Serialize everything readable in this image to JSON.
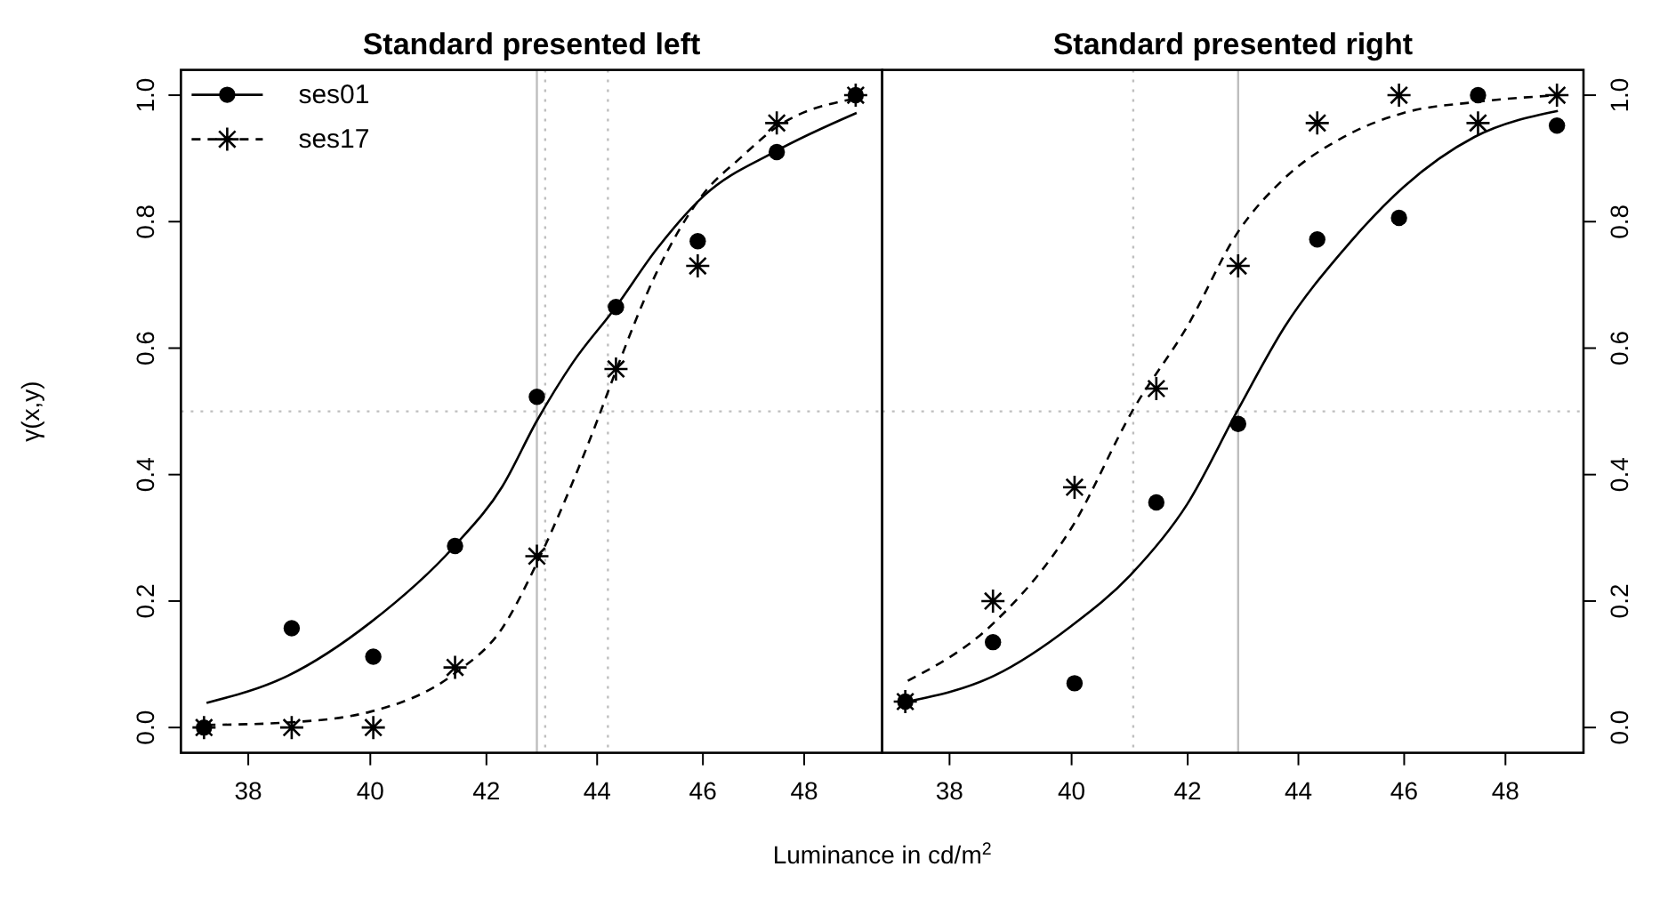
{
  "chart_data": [
    {
      "type": "scatter",
      "title": "Standard presented left",
      "xlabel": "Luminance in cd/m$^{2}$",
      "ylabel": "γ(x,y)",
      "log": "x",
      "xlim": [
        36.94,
        49.6
      ],
      "xticks": [
        38,
        40,
        42,
        44,
        46,
        48
      ],
      "ylim": [
        -0.04,
        1.04
      ],
      "yticks": [
        {
          "value": 0,
          "label": "0.0"
        },
        0.2,
        0.4,
        0.6,
        0.8,
        {
          "value": 1,
          "label": "1.0"
        }
      ],
      "legend": "top left",
      "series": [
        {
          "marker": "circle",
          "color": "#000000",
          "x": [
            37.3,
            38.7,
            40.05,
            41.45,
            42.9,
            44.35,
            45.9,
            47.45,
            49.05
          ],
          "values": [
            0,
            0.157,
            0.112,
            0.287,
            0.523,
            0.665,
            0.769,
            0.91,
            1.0
          ]
        },
        {
          "marker": "cross",
          "color": "#000000",
          "x": [
            37.3,
            38.7,
            40.05,
            41.45,
            42.9,
            44.35,
            45.9,
            47.45,
            49.05
          ],
          "values": [
            0,
            0,
            0,
            0.095,
            0.271,
            0.567,
            0.73,
            0.956,
            1.0
          ]
        },
        {
          "name": "ses01",
          "type": "line",
          "line_style": "solid",
          "color": "#000000",
          "x": [
            37.34,
            38.64,
            40.0,
            41.45,
            42.28,
            42.9,
            43.56,
            44.33,
            45.11,
            46.02,
            47.42,
            49.07
          ],
          "values": [
            0.039,
            0.082,
            0.166,
            0.288,
            0.381,
            0.485,
            0.578,
            0.663,
            0.756,
            0.841,
            0.911,
            0.972
          ]
        },
        {
          "name": "ses17",
          "type": "line",
          "line_style": "dashed",
          "color": "#000000",
          "x": [
            37.34,
            38.64,
            40.0,
            41.45,
            42.28,
            42.9,
            43.56,
            44.0,
            44.33,
            45.11,
            46.02,
            46.72,
            47.42,
            49.07
          ],
          "values": [
            0.004,
            0.008,
            0.025,
            0.086,
            0.157,
            0.26,
            0.39,
            0.485,
            0.56,
            0.719,
            0.845,
            0.9,
            0.948,
            0.995
          ]
        }
      ],
      "ref_lines": [
        {
          "axis": "x",
          "value": 42.9,
          "color": "#bebebe",
          "line_style": "solid"
        },
        {
          "axis": "x",
          "value": 43.05,
          "color": "#bebebe",
          "line_style": "dotted"
        },
        {
          "axis": "x",
          "value": 44.2,
          "color": "#bebebe",
          "line_style": "dotted"
        },
        {
          "axis": "y",
          "value": 0.5,
          "color": "#bebebe",
          "line_style": "dotted"
        }
      ]
    },
    {
      "type": "scatter",
      "title": "Standard presented right",
      "log": "x",
      "xlim": [
        36.94,
        49.6
      ],
      "xticks": [
        38,
        40,
        42,
        44,
        46,
        48
      ],
      "y2lim": [
        -0.04,
        1.04
      ],
      "y2ticks": [
        {
          "value": 0,
          "label": "0.0"
        },
        0.2,
        0.4,
        0.6,
        0.8,
        {
          "value": 1,
          "label": "1.0"
        }
      ],
      "series": [
        {
          "marker": "circle",
          "axis": "y2",
          "color": "#000000",
          "x": [
            37.3,
            38.7,
            40.05,
            41.45,
            42.9,
            44.35,
            45.9,
            47.45,
            49.05
          ],
          "values": [
            0.041,
            0.135,
            0.07,
            0.356,
            0.48,
            0.772,
            0.806,
            1.0,
            0.952
          ]
        },
        {
          "marker": "cross",
          "axis": "y2",
          "color": "#000000",
          "x": [
            37.3,
            38.7,
            40.05,
            41.45,
            42.9,
            44.35,
            45.9,
            47.45,
            49.05
          ],
          "values": [
            0.041,
            0.2,
            0.38,
            0.536,
            0.73,
            0.956,
            1.0,
            0.956,
            1.0
          ]
        },
        {
          "type": "line",
          "line_style": "solid",
          "axis": "y2",
          "color": "#000000",
          "x": [
            37.34,
            38.72,
            40.0,
            41.0,
            41.99,
            42.9,
            43.75,
            44.85,
            45.99,
            47.38,
            49.07
          ],
          "values": [
            0.041,
            0.082,
            0.161,
            0.241,
            0.353,
            0.503,
            0.634,
            0.756,
            0.855,
            0.934,
            0.975
          ]
        },
        {
          "type": "line",
          "line_style": "dashed",
          "axis": "y2",
          "color": "#000000",
          "x": [
            37.34,
            38.72,
            40.0,
            41.05,
            41.99,
            42.9,
            43.75,
            44.85,
            45.99,
            47.38,
            49.07
          ],
          "values": [
            0.074,
            0.166,
            0.316,
            0.503,
            0.634,
            0.784,
            0.869,
            0.934,
            0.972,
            0.989,
            1.0
          ]
        }
      ],
      "ref_lines": [
        {
          "axis": "x",
          "value": 41.05,
          "color": "#bebebe",
          "line_style": "dotted"
        },
        {
          "axis": "x",
          "value": 42.9,
          "color": "#bebebe",
          "line_style": "solid"
        },
        {
          "axis": "y2",
          "value": 0.5,
          "color": "#bebebe",
          "line_style": "dotted"
        }
      ]
    }
  ]
}
